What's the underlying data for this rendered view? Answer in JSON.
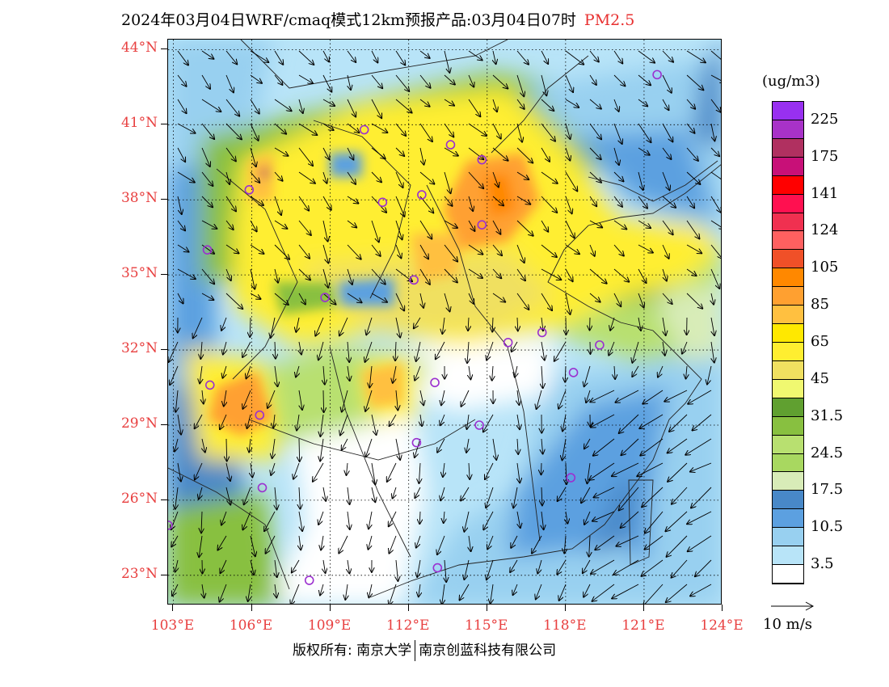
{
  "title": "2024年03月04日WRF/cmaq模式12km预报产品:03月04日07时",
  "pollutant": "PM2.5",
  "map": {
    "lat_labels": [
      "44°N",
      "41°N",
      "38°N",
      "35°N",
      "32°N",
      "29°N",
      "26°N",
      "23°N"
    ],
    "lat_values": [
      44,
      41,
      38,
      35,
      32,
      29,
      26,
      23
    ],
    "lon_labels": [
      "103°E",
      "106°E",
      "109°E",
      "112°E",
      "115°E",
      "118°E",
      "121°E",
      "124°E"
    ],
    "lon_values": [
      103,
      106,
      109,
      112,
      115,
      118,
      121,
      124
    ],
    "extent": {
      "lon_min": 102.8,
      "lon_max": 124.0,
      "lat_min": 21.8,
      "lat_max": 44.4
    },
    "station_marker_color": "#9b30d0",
    "stations": [
      {
        "lon": 121.5,
        "lat": 43.0
      },
      {
        "lon": 110.3,
        "lat": 40.8
      },
      {
        "lon": 113.6,
        "lat": 40.2
      },
      {
        "lon": 114.8,
        "lat": 39.6
      },
      {
        "lon": 105.9,
        "lat": 38.4
      },
      {
        "lon": 111.0,
        "lat": 37.9
      },
      {
        "lon": 112.5,
        "lat": 38.2
      },
      {
        "lon": 114.8,
        "lat": 37.0
      },
      {
        "lon": 104.3,
        "lat": 36.0
      },
      {
        "lon": 112.2,
        "lat": 34.8
      },
      {
        "lon": 108.8,
        "lat": 34.1
      },
      {
        "lon": 115.8,
        "lat": 32.3
      },
      {
        "lon": 117.1,
        "lat": 32.7
      },
      {
        "lon": 119.3,
        "lat": 32.2
      },
      {
        "lon": 104.4,
        "lat": 30.6
      },
      {
        "lon": 113.0,
        "lat": 30.7
      },
      {
        "lon": 118.3,
        "lat": 31.1
      },
      {
        "lon": 106.3,
        "lat": 29.4
      },
      {
        "lon": 114.7,
        "lat": 29.0
      },
      {
        "lon": 112.3,
        "lat": 28.3
      },
      {
        "lon": 106.4,
        "lat": 26.5
      },
      {
        "lon": 118.2,
        "lat": 26.9
      },
      {
        "lon": 102.8,
        "lat": 25.0
      },
      {
        "lon": 108.2,
        "lat": 22.8
      },
      {
        "lon": 113.1,
        "lat": 23.3
      }
    ]
  },
  "colorbar": {
    "unit": "(ug/m3)",
    "colors": [
      "#9830f0",
      "#a832c8",
      "#b03060",
      "#c81078",
      "#ff0000",
      "#ff1050",
      "#f03050",
      "#ff6060",
      "#f05028",
      "#ff8800",
      "#ffa030",
      "#ffc040",
      "#ffe800",
      "#ffee30",
      "#f0e060",
      "#f0f870",
      "#60a030",
      "#88c040",
      "#b8e070",
      "#a8d860",
      "#d8ecb8",
      "#4888c8",
      "#5ca0e0",
      "#98d0f0",
      "#b8e4f8",
      "#ffffff"
    ],
    "labels": [
      "225",
      "175",
      "141",
      "124",
      "105",
      "85",
      "65",
      "45",
      "31.5",
      "24.5",
      "17.5",
      "10.5",
      "3.5"
    ]
  },
  "wind_vector_label": "10  m/s",
  "copyright": {
    "part1": "版权所有: 南京大学",
    "part2": "南京创蓝科技有限公司"
  }
}
